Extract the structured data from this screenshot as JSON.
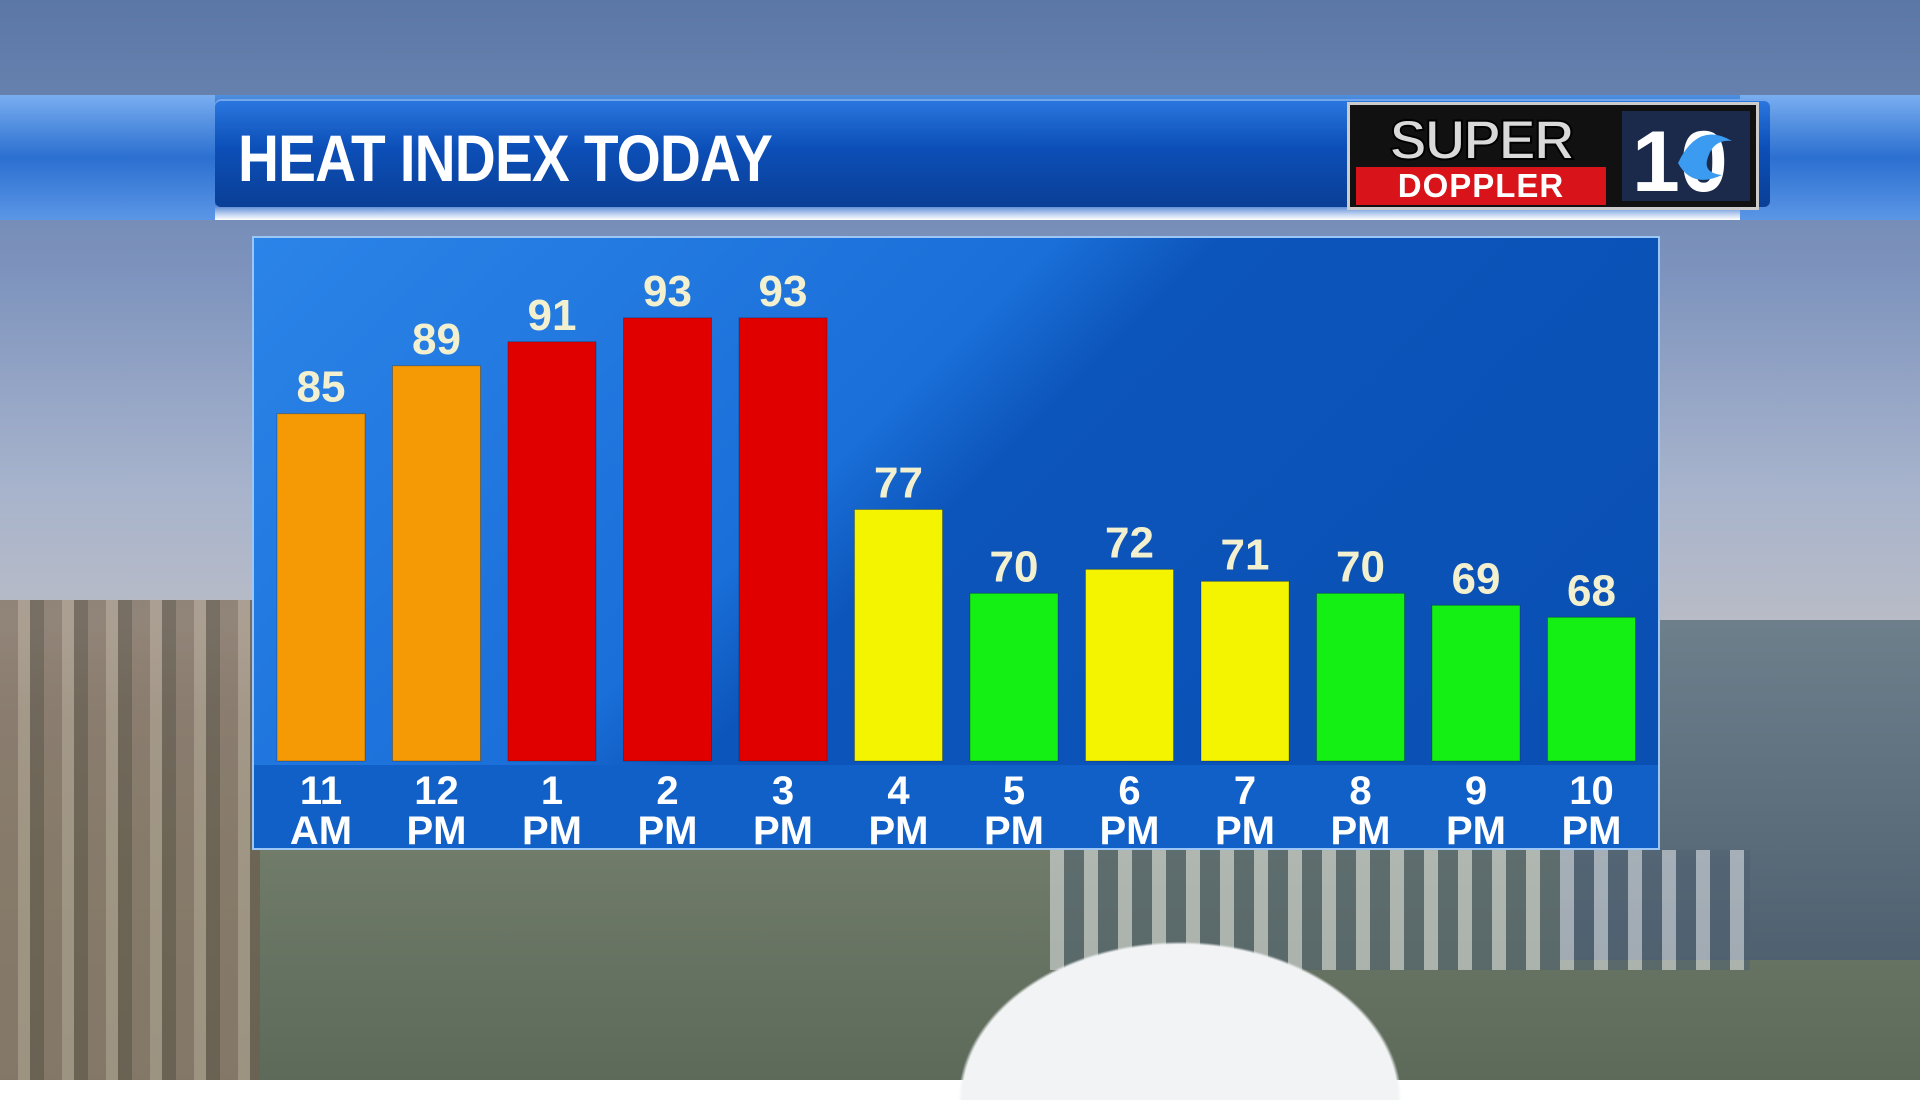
{
  "title": "HEAT INDEX TODAY",
  "logo": {
    "line1": "SUPER",
    "line2": "DOPPLER",
    "mark": "10"
  },
  "colors": {
    "orange": "#f59a05",
    "red": "#e10000",
    "yellow": "#f4f400",
    "green": "#14f014"
  },
  "chart_data": {
    "type": "bar",
    "title": "HEAT INDEX TODAY",
    "xlabel": "",
    "ylabel": "",
    "categories": [
      {
        "top": "11",
        "bottom": "AM"
      },
      {
        "top": "12",
        "bottom": "PM"
      },
      {
        "top": "1",
        "bottom": "PM"
      },
      {
        "top": "2",
        "bottom": "PM"
      },
      {
        "top": "3",
        "bottom": "PM"
      },
      {
        "top": "4",
        "bottom": "PM"
      },
      {
        "top": "5",
        "bottom": "PM"
      },
      {
        "top": "6",
        "bottom": "PM"
      },
      {
        "top": "7",
        "bottom": "PM"
      },
      {
        "top": "8",
        "bottom": "PM"
      },
      {
        "top": "9",
        "bottom": "PM"
      },
      {
        "top": "10",
        "bottom": "PM"
      }
    ],
    "values": [
      85,
      89,
      91,
      93,
      93,
      77,
      70,
      72,
      71,
      70,
      69,
      68
    ],
    "bar_colors": [
      "orange",
      "orange",
      "red",
      "red",
      "red",
      "yellow",
      "green",
      "yellow",
      "yellow",
      "green",
      "green",
      "green"
    ],
    "ylim": [
      56,
      98
    ],
    "grid": false,
    "legend": "none"
  }
}
